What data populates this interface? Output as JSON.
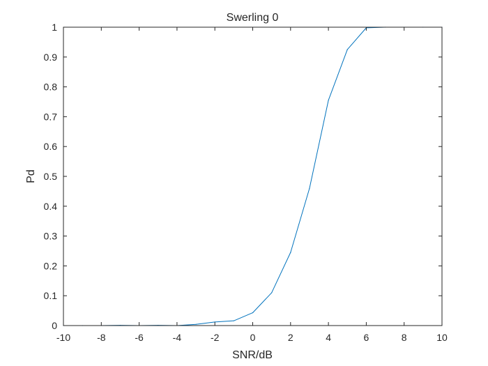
{
  "chart_data": {
    "type": "line",
    "title": "Swerling 0",
    "xlabel": "SNR/dB",
    "ylabel": "Pd",
    "xlim": [
      -10,
      10
    ],
    "ylim": [
      0,
      1
    ],
    "grid": false,
    "xticks": [
      -10,
      -8,
      -6,
      -4,
      -2,
      0,
      2,
      4,
      6,
      8,
      10
    ],
    "yticks": [
      0,
      0.1,
      0.2,
      0.3,
      0.4,
      0.5,
      0.6,
      0.7,
      0.8,
      0.9,
      1
    ],
    "xtick_labels": [
      "-10",
      "-8",
      "-6",
      "-4",
      "-2",
      "0",
      "2",
      "4",
      "6",
      "8",
      "10"
    ],
    "ytick_labels": [
      "0",
      "0.1",
      "0.2",
      "0.3",
      "0.4",
      "0.5",
      "0.6",
      "0.7",
      "0.8",
      "0.9",
      "1"
    ],
    "series": [
      {
        "color": "#0072bd",
        "x": [
          -10,
          -9,
          -8,
          -7,
          -6,
          -5,
          -4,
          -3,
          -2,
          -1,
          0,
          1,
          2,
          3,
          4,
          5,
          6,
          7,
          8,
          9,
          10
        ],
        "y": [
          0,
          0,
          0,
          0.001,
          0,
          0.001,
          0,
          0.004,
          0.012,
          0.016,
          0.043,
          0.11,
          0.245,
          0.46,
          0.755,
          0.925,
          0.998,
          1,
          1,
          1,
          1
        ]
      }
    ]
  }
}
